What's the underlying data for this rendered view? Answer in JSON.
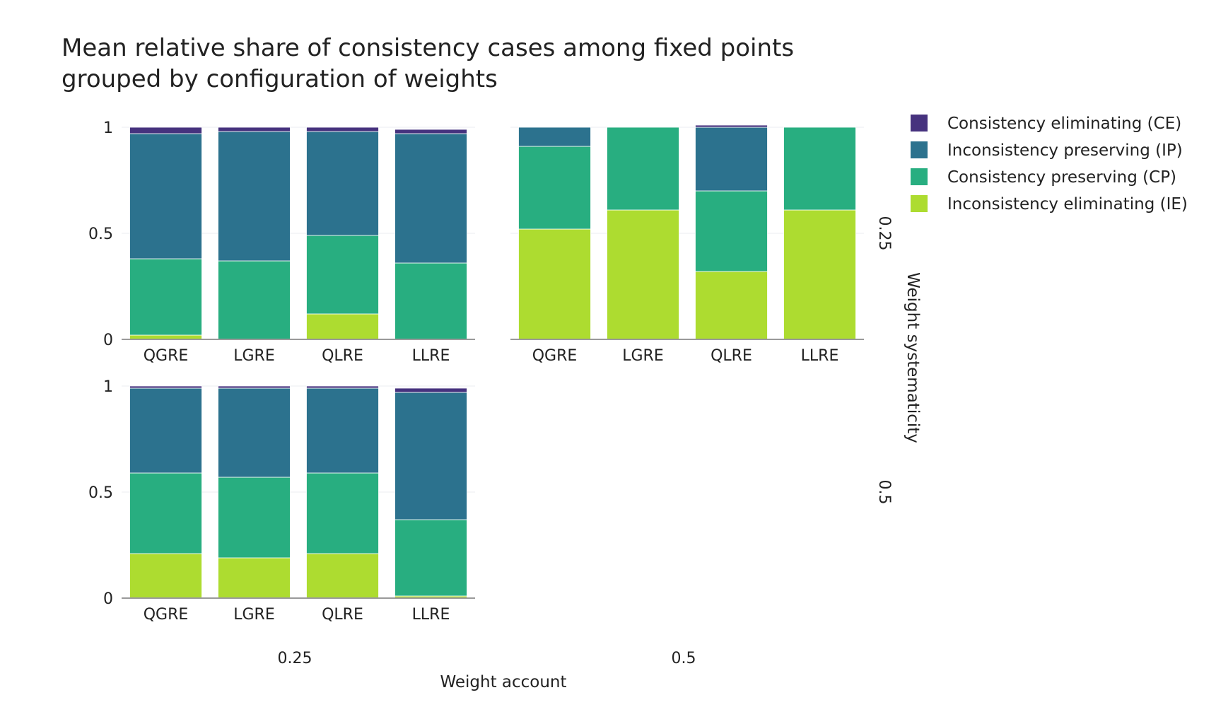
{
  "chart_data": {
    "type": "bar",
    "stacked": true,
    "title_lines": [
      "Mean relative share of consistency cases among fixed points",
      "grouped by configuration of weights"
    ],
    "xlabel": "Weight account",
    "ylabel_right": "Weight systematicity",
    "categories": [
      "QGRE",
      "LGRE",
      "QLRE",
      "LLRE"
    ],
    "ylim": [
      0,
      1
    ],
    "yticks": [
      "0",
      "0.5",
      "1"
    ],
    "column_labels": [
      "0.25",
      "0.5"
    ],
    "row_labels": [
      "0.25",
      "0.5"
    ],
    "legend_position": "top-right",
    "series": [
      {
        "name": "Consistency eliminating (CE)",
        "key": "CE",
        "color": "#46327e"
      },
      {
        "name": "Inconsistency preserving (IP)",
        "key": "IP",
        "color": "#2c728e"
      },
      {
        "name": "Consistency preserving (CP)",
        "key": "CP",
        "color": "#28ae80"
      },
      {
        "name": "Inconsistency eliminating (IE)",
        "key": "IE",
        "color": "#addc30"
      }
    ],
    "panels": [
      {
        "id": "account-0.25-systematicity-0.25",
        "weight_account": "0.25",
        "weight_systematicity": "0.25",
        "values": {
          "IE": [
            0.02,
            0.0,
            0.12,
            0.0
          ],
          "CP": [
            0.36,
            0.37,
            0.37,
            0.36
          ],
          "IP": [
            0.59,
            0.61,
            0.49,
            0.61
          ],
          "CE": [
            0.03,
            0.02,
            0.02,
            0.02
          ]
        }
      },
      {
        "id": "account-0.5-systematicity-0.25",
        "weight_account": "0.5",
        "weight_systematicity": "0.25",
        "values": {
          "IE": [
            0.52,
            0.61,
            0.32,
            0.61
          ],
          "CP": [
            0.39,
            0.39,
            0.38,
            0.39
          ],
          "IP": [
            0.09,
            0.0,
            0.3,
            0.0
          ],
          "CE": [
            0.0,
            0.0,
            0.01,
            0.0
          ]
        }
      },
      {
        "id": "account-0.25-systematicity-0.5",
        "weight_account": "0.25",
        "weight_systematicity": "0.5",
        "values": {
          "IE": [
            0.21,
            0.19,
            0.21,
            0.01
          ],
          "CP": [
            0.38,
            0.38,
            0.38,
            0.36
          ],
          "IP": [
            0.4,
            0.42,
            0.4,
            0.6
          ],
          "CE": [
            0.01,
            0.01,
            0.01,
            0.02
          ]
        }
      }
    ]
  }
}
